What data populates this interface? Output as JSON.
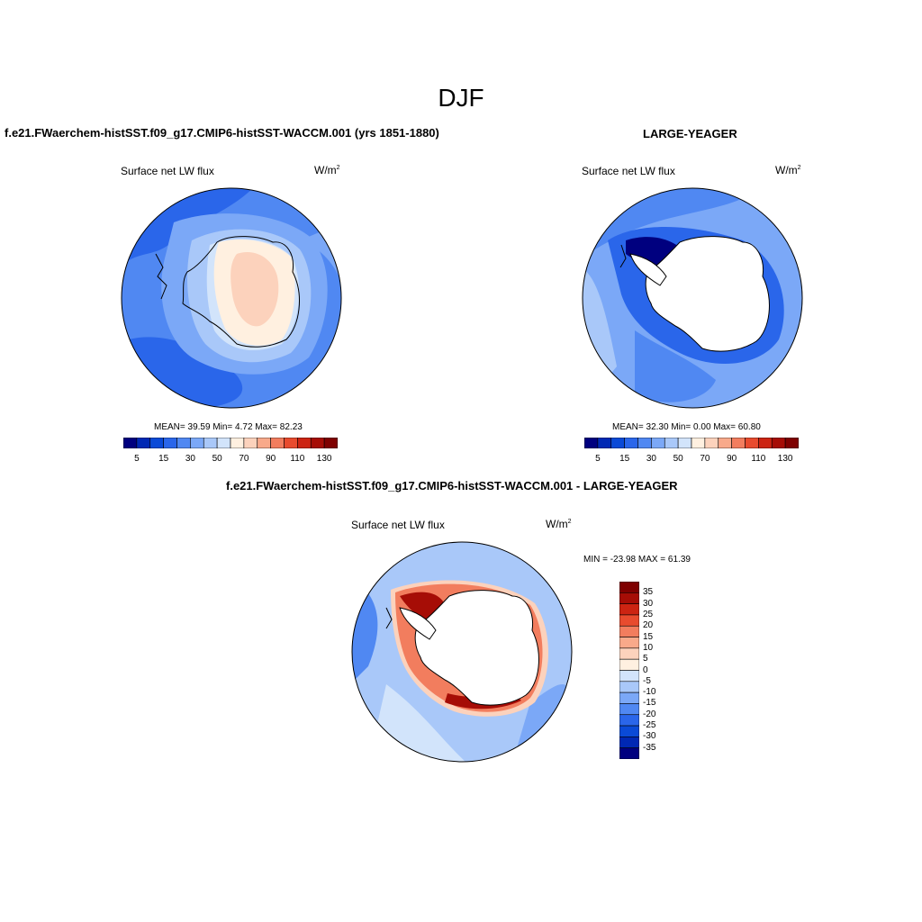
{
  "season_title": "DJF",
  "panels": [
    {
      "title": "f.e21.FWaerchem-histSST.f09_g17.CMIP6-histSST-WACCM.001 (yrs 1851-1880)",
      "variable": "Surface net LW flux",
      "units": "W/m",
      "units_sup": "2",
      "stats": "MEAN=  39.59  Min=    4.72  Max=  82.23"
    },
    {
      "title": "LARGE-YEAGER",
      "variable": "Surface net LW flux",
      "units": "W/m",
      "units_sup": "2",
      "stats": "MEAN=  32.30  Min=    0.00  Max=  60.80"
    },
    {
      "title": "f.e21.FWaerchem-histSST.f09_g17.CMIP6-histSST-WACCM.001 - LARGE-YEAGER",
      "variable": "Surface net LW flux",
      "units": "W/m",
      "units_sup": "2",
      "stats": "MIN = -23.98 MAX =  61.39"
    }
  ],
  "colorbar_abs": {
    "ticks": [
      "5",
      "15",
      "30",
      "50",
      "70",
      "90",
      "110",
      "130"
    ],
    "colors": [
      "#00007f",
      "#0028b4",
      "#0a4ad7",
      "#2a66ea",
      "#5088f2",
      "#7ba8f7",
      "#a9c8f9",
      "#d2e4fb",
      "#fff0e0",
      "#fcd2bc",
      "#f8a98a",
      "#f27d5e",
      "#e84b2e",
      "#cc2412",
      "#a60d06",
      "#7f0000"
    ]
  },
  "colorbar_diff": {
    "labels": [
      "35",
      "30",
      "25",
      "20",
      "15",
      "10",
      "5",
      "0",
      "-5",
      "-10",
      "-15",
      "-20",
      "-25",
      "-30",
      "-35"
    ],
    "colors": [
      "#7f0000",
      "#a60d06",
      "#cc2412",
      "#e84b2e",
      "#f27d5e",
      "#f8a98a",
      "#fcd2bc",
      "#fff0e0",
      "#d2e4fb",
      "#a9c8f9",
      "#7ba8f7",
      "#5088f2",
      "#2a66ea",
      "#0a4ad7",
      "#0028b4",
      "#00007f"
    ]
  }
}
